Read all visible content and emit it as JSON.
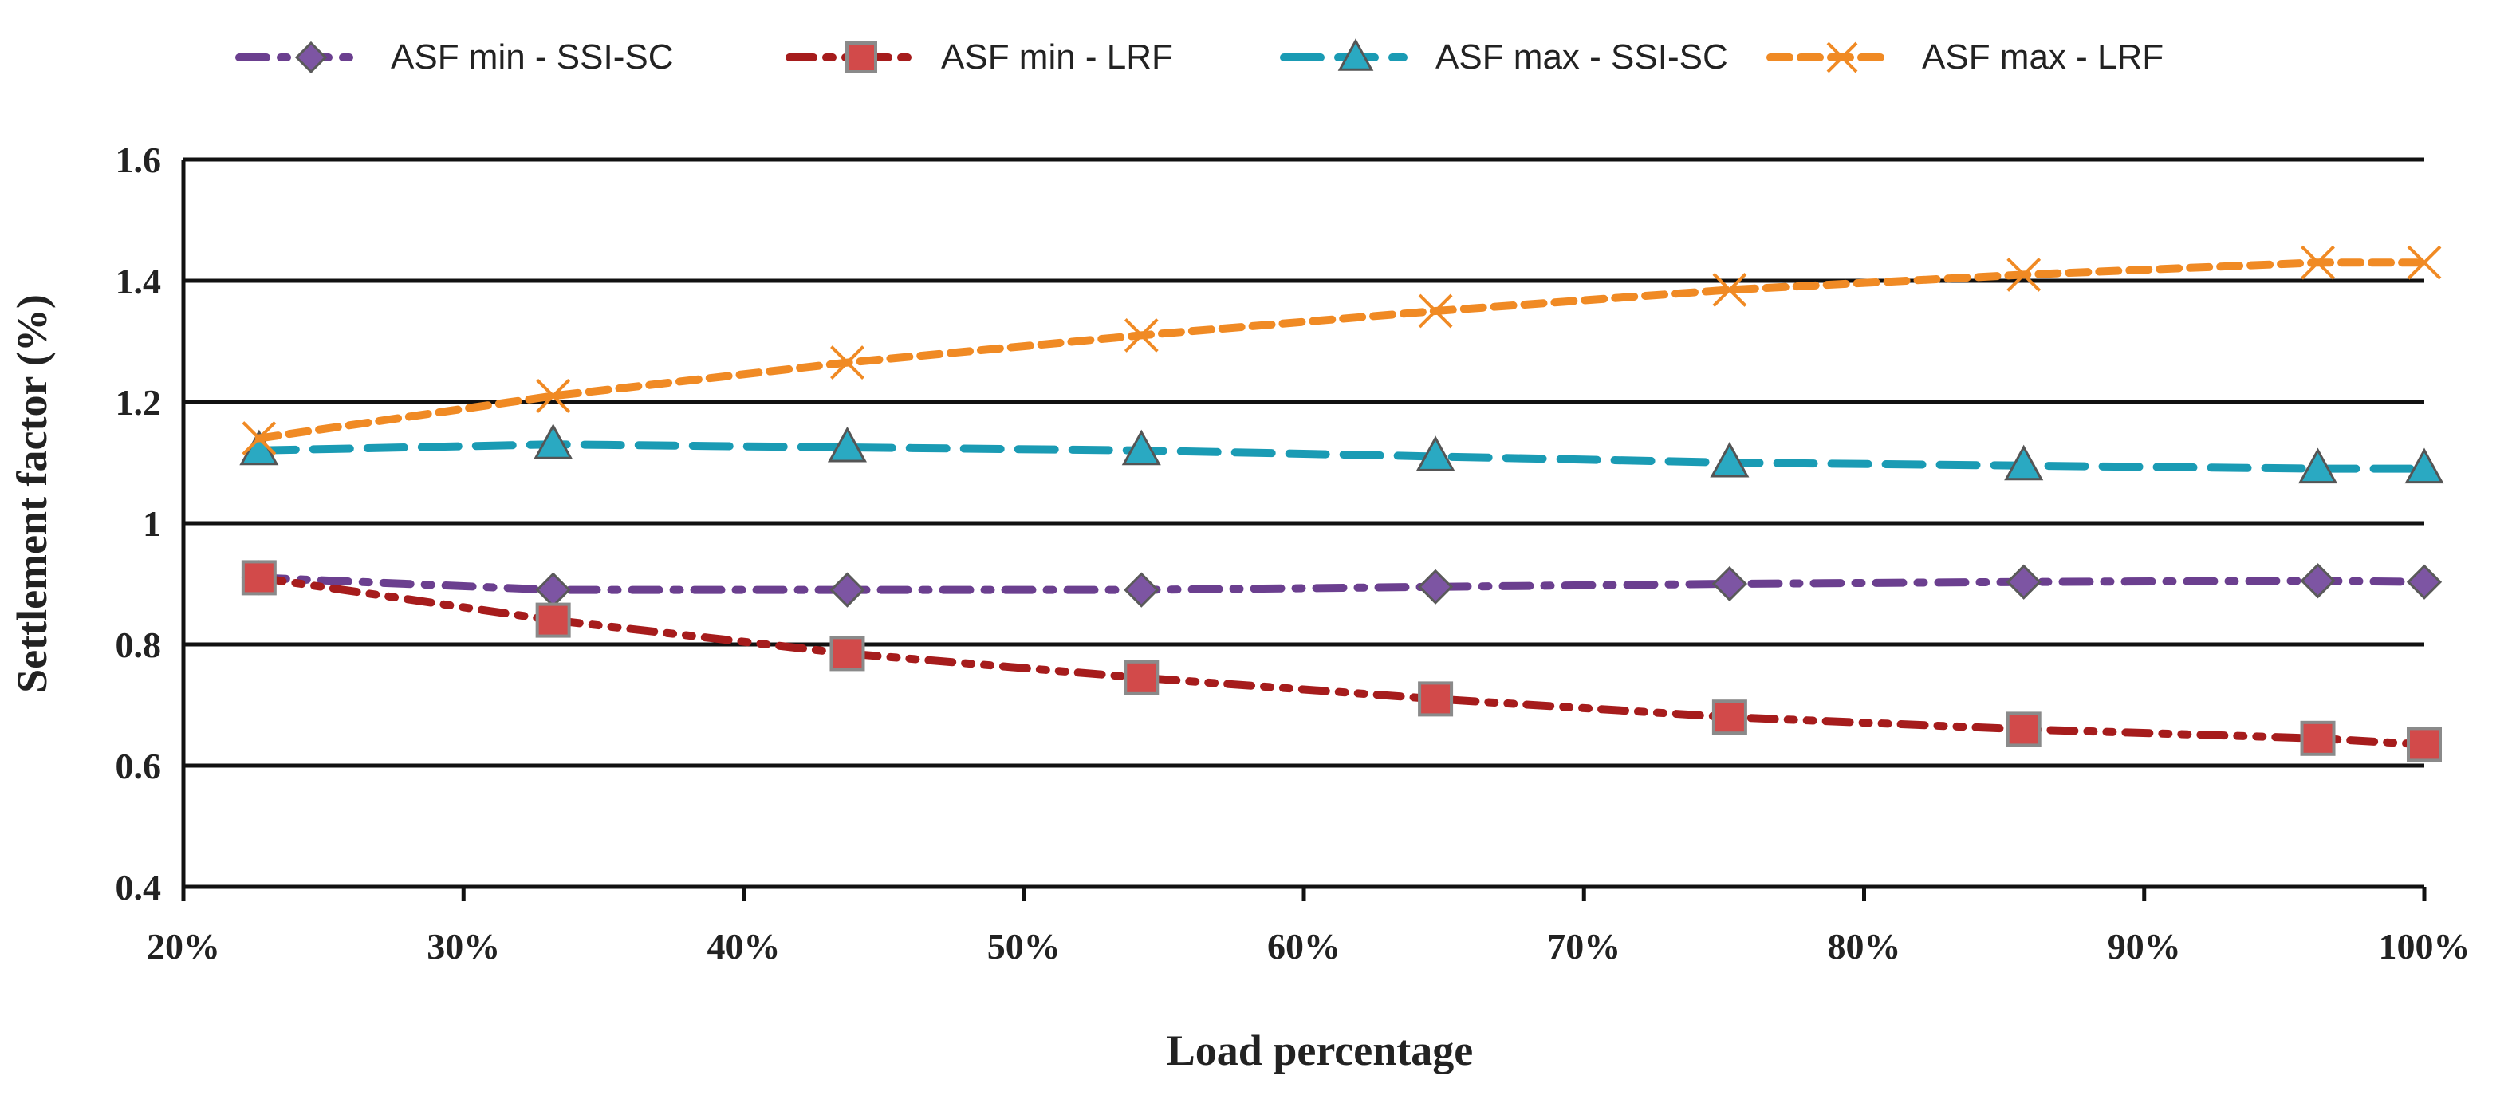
{
  "chart_data": {
    "type": "line",
    "title": "",
    "xlabel": "Load percentage",
    "ylabel": "Settlement factor (%)",
    "xlim": [
      20,
      100
    ],
    "ylim": [
      0.4,
      1.6
    ],
    "xticks": [
      20,
      30,
      40,
      50,
      60,
      70,
      80,
      90,
      100
    ],
    "xtick_labels": [
      "20%",
      "30%",
      "40%",
      "50%",
      "60%",
      "70%",
      "80%",
      "90%",
      "100%"
    ],
    "yticks": [
      0.4,
      0.6,
      0.8,
      1.0,
      1.2,
      1.4,
      1.6
    ],
    "ytick_labels": [
      "0.4",
      "0.6",
      "0.8",
      "1",
      "1.2",
      "1.4",
      "1.6"
    ],
    "grid": "horizontal",
    "legend_position": "top",
    "x": [
      22.7,
      33.2,
      43.7,
      54.2,
      64.7,
      75.2,
      85.7,
      96.2,
      100
    ],
    "series": [
      {
        "name": "ASF min - SSI-SC",
        "color": "#6b3f8f",
        "marker": "diamond",
        "line_style": "dash-dot",
        "values": [
          0.91,
          0.89,
          0.89,
          0.89,
          0.895,
          0.9,
          0.903,
          0.905,
          0.903
        ]
      },
      {
        "name": "ASF min - LRF",
        "color": "#a61c1c",
        "marker": "square",
        "line_style": "dash-dot-dot",
        "values": [
          0.91,
          0.84,
          0.785,
          0.745,
          0.71,
          0.68,
          0.66,
          0.645,
          0.635
        ]
      },
      {
        "name": "ASF max - SSI-SC",
        "color": "#1a9bb4",
        "marker": "triangle",
        "line_style": "dashed",
        "values": [
          1.12,
          1.13,
          1.125,
          1.12,
          1.11,
          1.1,
          1.095,
          1.09,
          1.09
        ]
      },
      {
        "name": "ASF max - LRF",
        "color": "#f08a24",
        "marker": "x",
        "line_style": "short-dashed",
        "values": [
          1.14,
          1.21,
          1.265,
          1.31,
          1.35,
          1.385,
          1.41,
          1.43,
          1.43
        ]
      }
    ]
  }
}
